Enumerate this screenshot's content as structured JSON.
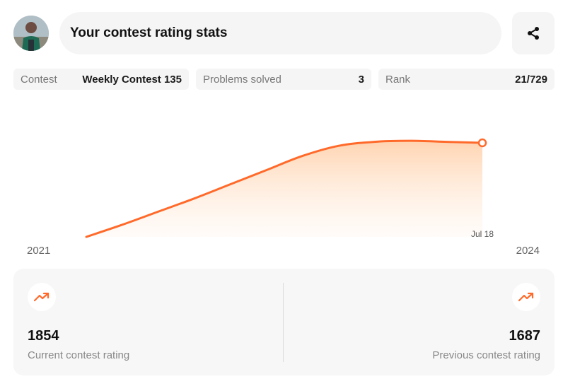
{
  "header": {
    "title": "Your contest rating stats",
    "avatar_icon": "user-avatar",
    "share_icon": "share-icon"
  },
  "summary": {
    "contest_label": "Contest",
    "contest_value": "Weekly Contest 135",
    "solved_label": "Problems solved",
    "solved_value": "3",
    "rank_label": "Rank",
    "rank_value": "21/729"
  },
  "chart_data": {
    "type": "area",
    "x_start_label": "2021",
    "x_end_label": "2024",
    "highlight_label": "Jul 18",
    "series": [
      {
        "values": [
          0,
          12,
          25,
          38,
          52,
          66,
          80,
          90,
          94,
          95,
          94,
          93
        ]
      }
    ],
    "line_color": "#ff6a2b",
    "fill_color": "#ffd7b5"
  },
  "stats": {
    "current_value": "1854",
    "current_label": "Current contest rating",
    "previous_value": "1687",
    "previous_label": "Previous contest rating",
    "trend_icon": "trending-up-icon",
    "accent": "#ff6a2b"
  }
}
